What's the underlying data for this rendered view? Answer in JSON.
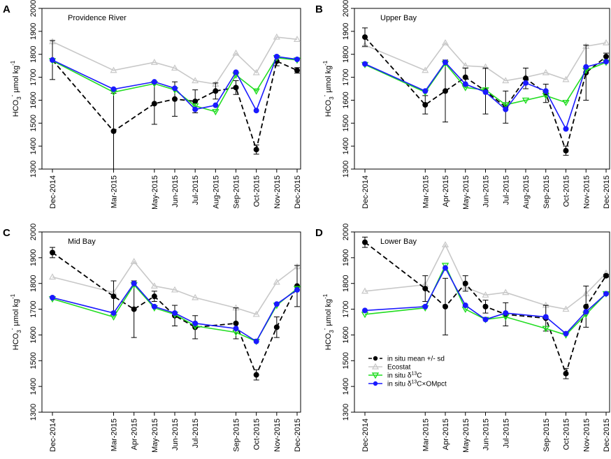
{
  "figure": {
    "y_axis_ticks": [
      1300,
      1400,
      1500,
      1600,
      1700,
      1800,
      1900,
      2000
    ],
    "y_axis_label": "HCO3- µmol kg-1",
    "y_axis_label_parts": {
      "base": "HCO",
      "sub": "3",
      "sup_ion": "-",
      "unit": "µmol kg",
      "unit_sup": "-1"
    }
  },
  "legend": {
    "items": [
      {
        "key": "insitu",
        "label": "in situ mean +/- sd",
        "color": "#000000",
        "marker": "circle",
        "dashed": true
      },
      {
        "key": "ecostat",
        "label": "Ecostat",
        "color": "#c8c8c8",
        "marker": "triangle-up",
        "dashed": false
      },
      {
        "key": "d13c",
        "label": "in situ δ13C",
        "color": "#22dd22",
        "marker": "triangle-down",
        "dashed": false
      },
      {
        "key": "ompct",
        "label": "in situ δ13C×OMpct",
        "color": "#1a1aff",
        "marker": "circle",
        "dashed": false
      }
    ],
    "label_parts": {
      "d13c": {
        "pre": "in situ δ",
        "sup": "13",
        "post": "C"
      },
      "ompct": {
        "pre": "in situ δ",
        "sup": "13",
        "post": "C×OMpct"
      }
    }
  },
  "chart_data": [
    {
      "type": "line",
      "letter": "A",
      "title": "Providence River",
      "ylabel": "HCO3- µmol kg-1",
      "ylim": [
        1300,
        2000
      ],
      "x": [
        "Dec-2014",
        "Mar-2015",
        "May-2015",
        "Jun-2015",
        "Jul-2015",
        "Aug-2015",
        "Sep-2015",
        "Oct-2015",
        "Nov-2015",
        "Dec-2015"
      ],
      "x_month_index": [
        0,
        3,
        5,
        6,
        7,
        8,
        9,
        10,
        11,
        12
      ],
      "series": [
        {
          "name": "in situ mean +/- sd",
          "key": "insitu",
          "values": [
            1775,
            1465,
            1585,
            1605,
            1595,
            1640,
            1655,
            1385,
            1770,
            1730
          ],
          "sd": [
            85,
            165,
            90,
            75,
            50,
            35,
            30,
            20,
            20,
            12
          ]
        },
        {
          "name": "Ecostat",
          "key": "ecostat",
          "values": [
            1855,
            1730,
            1765,
            1740,
            1685,
            1670,
            1805,
            1720,
            1875,
            1865
          ]
        },
        {
          "name": "in situ δ13C",
          "key": "d13c",
          "values": [
            1772,
            1635,
            1672,
            1645,
            1575,
            1550,
            1710,
            1640,
            1785,
            1775
          ]
        },
        {
          "name": "in situ δ13C×OMpct",
          "key": "ompct",
          "values": [
            1775,
            1648,
            1680,
            1652,
            1560,
            1578,
            1722,
            1555,
            1790,
            1778
          ]
        }
      ]
    },
    {
      "type": "line",
      "letter": "B",
      "title": "Upper Bay",
      "ylabel": "HCO3- µmol kg-1",
      "ylim": [
        1300,
        2000
      ],
      "x": [
        "Dec-2014",
        "Mar-2015",
        "Apr-2015",
        "May-2015",
        "Jun-2015",
        "Jul-2015",
        "Aug-2015",
        "Sep-2015",
        "Oct-2015",
        "Nov-2015",
        "Dec-2015"
      ],
      "x_month_index": [
        0,
        3,
        4,
        5,
        6,
        7,
        8,
        9,
        10,
        11,
        12
      ],
      "series": [
        {
          "name": "in situ mean +/- sd",
          "key": "insitu",
          "values": [
            1875,
            1580,
            1640,
            1700,
            1640,
            1570,
            1695,
            1630,
            1380,
            1720,
            1790
          ],
          "sd": [
            40,
            40,
            135,
            40,
            100,
            70,
            45,
            40,
            20,
            120,
            15
          ]
        },
        {
          "name": "Ecostat",
          "key": "ecostat",
          "values": [
            1840,
            1730,
            1850,
            1750,
            1745,
            1685,
            1700,
            1720,
            1690,
            1835,
            1850
          ]
        },
        {
          "name": "in situ δ13C",
          "key": "d13c",
          "values": [
            1755,
            1635,
            1760,
            1655,
            1645,
            1580,
            1600,
            1620,
            1590,
            1730,
            1765
          ]
        },
        {
          "name": "in situ δ13C×OMpct",
          "key": "ompct",
          "values": [
            1758,
            1640,
            1765,
            1670,
            1635,
            1560,
            1675,
            1640,
            1475,
            1745,
            1768
          ]
        }
      ]
    },
    {
      "type": "line",
      "letter": "C",
      "title": "Mid Bay",
      "ylabel": "HCO3- µmol kg-1",
      "ylim": [
        1300,
        2000
      ],
      "x": [
        "Dec-2014",
        "Mar-2015",
        "Apr-2015",
        "May-2015",
        "Jun-2015",
        "Jul-2015",
        "Sep-2015",
        "Oct-2015",
        "Nov-2015",
        "Dec-2015"
      ],
      "x_month_index": [
        0,
        3,
        4,
        5,
        6,
        7,
        9,
        10,
        11,
        12
      ],
      "series": [
        {
          "name": "in situ mean +/- sd",
          "key": "insitu",
          "values": [
            1920,
            1750,
            1700,
            1750,
            1675,
            1630,
            1645,
            1445,
            1630,
            1790
          ],
          "sd": [
            20,
            60,
            110,
            20,
            40,
            45,
            60,
            20,
            40,
            80
          ]
        },
        {
          "name": "Ecostat",
          "key": "ecostat",
          "values": [
            1825,
            1765,
            1885,
            1790,
            1775,
            1745,
            1705,
            1680,
            1805,
            1865
          ]
        },
        {
          "name": "in situ δ13C",
          "key": "d13c",
          "values": [
            1740,
            1670,
            1795,
            1705,
            1680,
            1635,
            1610,
            1575,
            1715,
            1780
          ]
        },
        {
          "name": "in situ δ13C×OMpct",
          "key": "ompct",
          "values": [
            1745,
            1685,
            1800,
            1710,
            1685,
            1645,
            1625,
            1575,
            1720,
            1775
          ]
        }
      ]
    },
    {
      "type": "line",
      "letter": "D",
      "title": "Lower Bay",
      "ylabel": "HCO3- µmol kg-1",
      "ylim": [
        1300,
        2000
      ],
      "x": [
        "Dec-2014",
        "Mar-2015",
        "Apr-2015",
        "May-2015",
        "Jun-2015",
        "Jul-2015",
        "Sep-2015",
        "Oct-2015",
        "Nov-2015",
        "Dec-2015"
      ],
      "x_month_index": [
        0,
        3,
        4,
        5,
        6,
        7,
        9,
        10,
        11,
        12
      ],
      "series": [
        {
          "name": "in situ mean +/- sd",
          "key": "insitu",
          "values": [
            1960,
            1780,
            1710,
            1800,
            1710,
            1680,
            1665,
            1450,
            1710,
            1830
          ],
          "sd": [
            20,
            50,
            110,
            30,
            25,
            45,
            50,
            20,
            80,
            5
          ]
        },
        {
          "name": "Ecostat",
          "key": "ecostat",
          "values": [
            1770,
            1795,
            1950,
            1785,
            1755,
            1765,
            1715,
            1700,
            1760,
            1840
          ]
        },
        {
          "name": "in situ δ13C",
          "key": "d13c",
          "values": [
            1680,
            1705,
            1870,
            1700,
            1660,
            1670,
            1625,
            1600,
            1680,
            1760
          ]
        },
        {
          "name": "in situ δ13C×OMpct",
          "key": "ompct",
          "values": [
            1695,
            1710,
            1860,
            1715,
            1660,
            1685,
            1670,
            1605,
            1690,
            1760
          ]
        }
      ]
    }
  ]
}
